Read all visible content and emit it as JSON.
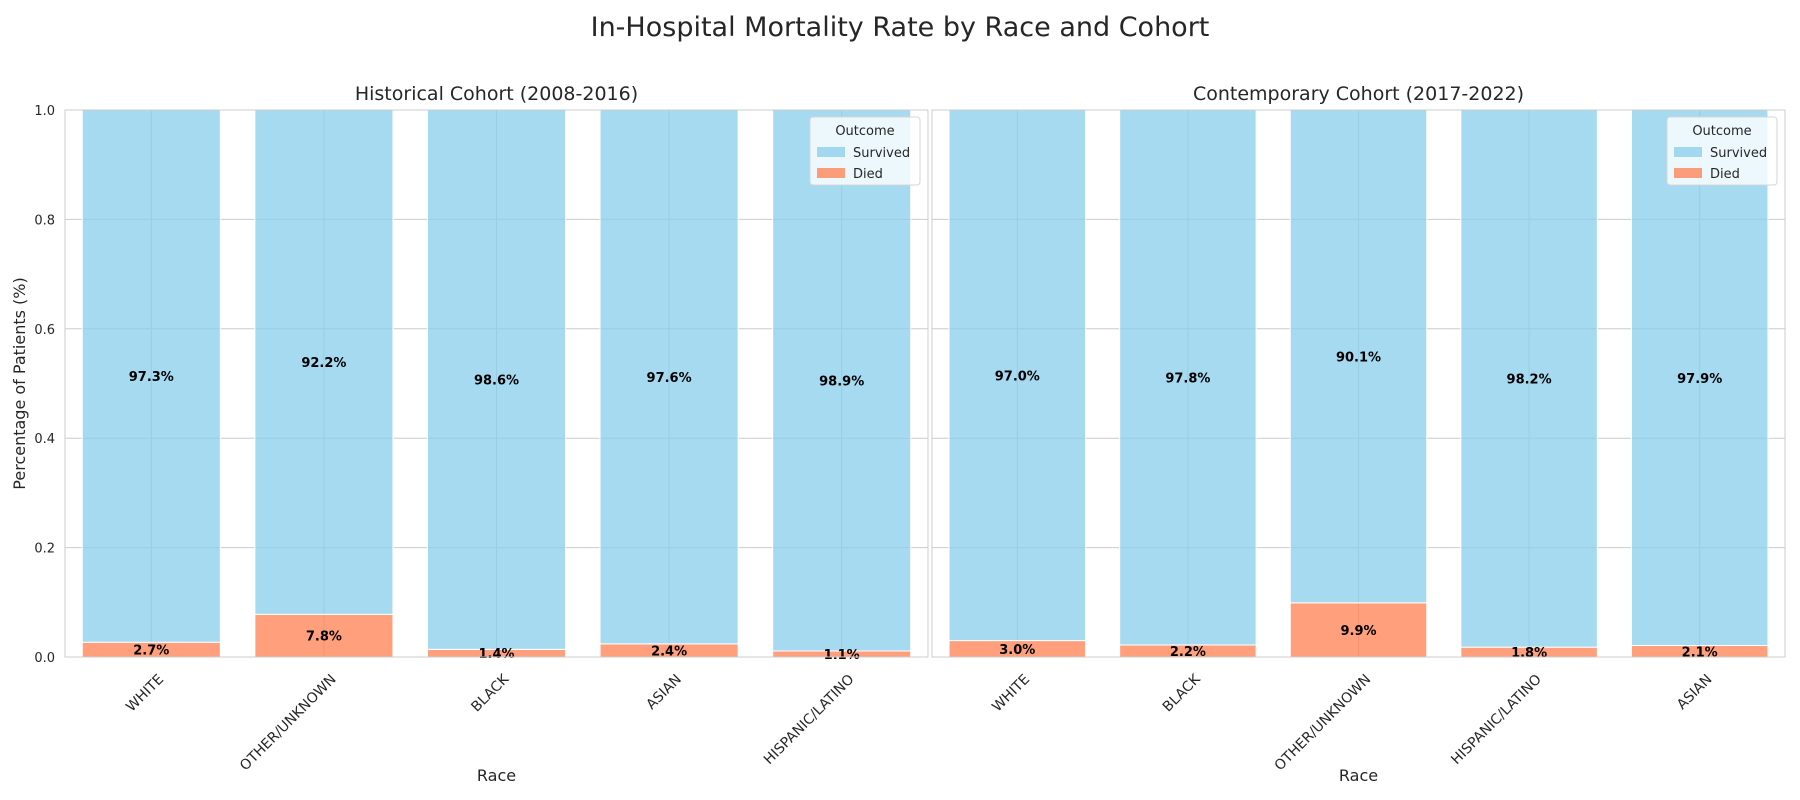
{
  "title": "In-Hospital Mortality Rate by Race and Cohort",
  "colors": {
    "survived": "#87CEEB",
    "died": "#FF7F50",
    "grid": "#cccccc",
    "spine": "#cccccc"
  },
  "chart_data": [
    {
      "type": "bar",
      "stacked": true,
      "title": "Historical Cohort (2008-2016)",
      "xlabel": "Race",
      "ylabel": "Percentage of Patients (%)",
      "ylim": [
        0,
        1.0
      ],
      "yticks": [
        "0.0",
        "0.2",
        "0.4",
        "0.6",
        "0.8",
        "1.0"
      ],
      "grid": true,
      "legend": {
        "title": "Outcome",
        "position": "top-right",
        "entries": [
          "Survived",
          "Died"
        ]
      },
      "categories": [
        "WHITE",
        "OTHER/UNKNOWN",
        "BLACK",
        "ASIAN",
        "HISPANIC/LATINO"
      ],
      "series": [
        {
          "name": "Died",
          "values": [
            0.027,
            0.078,
            0.014,
            0.024,
            0.011
          ],
          "labels": [
            "2.7%",
            "7.8%",
            "1.4%",
            "2.4%",
            "1.1%"
          ]
        },
        {
          "name": "Survived",
          "values": [
            0.973,
            0.922,
            0.986,
            0.976,
            0.989
          ],
          "labels": [
            "97.3%",
            "92.2%",
            "98.6%",
            "97.6%",
            "98.9%"
          ]
        }
      ]
    },
    {
      "type": "bar",
      "stacked": true,
      "title": "Contemporary Cohort (2017-2022)",
      "xlabel": "Race",
      "ylabel": "",
      "ylim": [
        0,
        1.0
      ],
      "yticks": [],
      "grid": true,
      "legend": {
        "title": "Outcome",
        "position": "top-right",
        "entries": [
          "Survived",
          "Died"
        ]
      },
      "categories": [
        "WHITE",
        "BLACK",
        "OTHER/UNKNOWN",
        "HISPANIC/LATINO",
        "ASIAN"
      ],
      "series": [
        {
          "name": "Died",
          "values": [
            0.03,
            0.022,
            0.099,
            0.018,
            0.021
          ],
          "labels": [
            "3.0%",
            "2.2%",
            "9.9%",
            "1.8%",
            "2.1%"
          ]
        },
        {
          "name": "Survived",
          "values": [
            0.97,
            0.978,
            0.901,
            0.982,
            0.979
          ],
          "labels": [
            "97.0%",
            "97.8%",
            "90.1%",
            "98.2%",
            "97.9%"
          ]
        }
      ]
    }
  ]
}
